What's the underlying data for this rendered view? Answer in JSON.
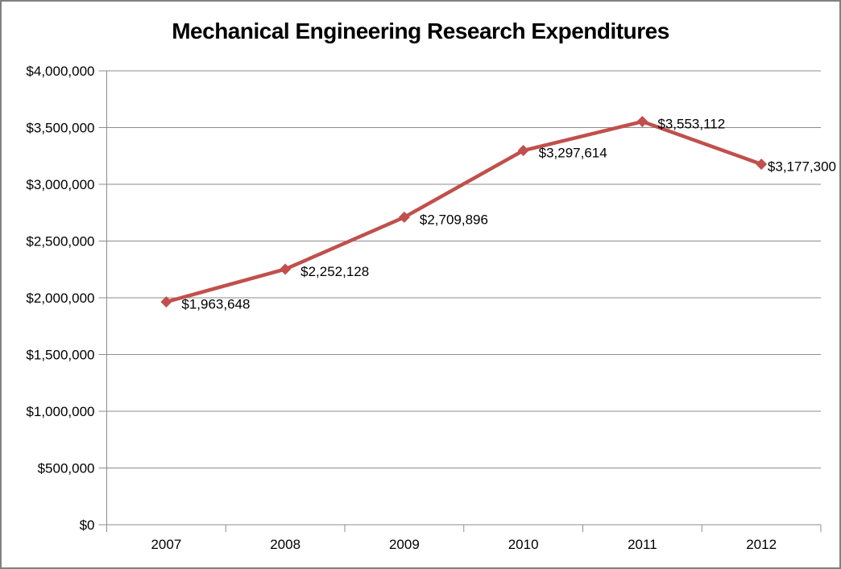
{
  "chart_data": {
    "type": "line",
    "title": "Mechanical Engineering Research Expenditures",
    "categories": [
      "2007",
      "2008",
      "2009",
      "2010",
      "2011",
      "2012"
    ],
    "series": [
      {
        "values": [
          1963648,
          2252128,
          2709896,
          3297614,
          3553112,
          3177300
        ],
        "point_labels": [
          "$1,963,648",
          "$2,252,128",
          "$2,709,896",
          "$3,297,614",
          "$3,553,112",
          "$3,177,300"
        ],
        "color": "#C0504D",
        "marker": "diamond"
      }
    ],
    "y_axis": {
      "min": 0,
      "max": 4000000,
      "step": 500000,
      "tick_labels": [
        "$0",
        "$500,000",
        "$1,000,000",
        "$1,500,000",
        "$2,000,000",
        "$2,500,000",
        "$3,000,000",
        "$3,500,000",
        "$4,000,000"
      ]
    },
    "x_axis": {
      "tick_labels": [
        "2007",
        "2008",
        "2009",
        "2010",
        "2011",
        "2012"
      ]
    },
    "grid": true,
    "legend": "none",
    "colors": {
      "series": "#C0504D",
      "grid": "#8C8C8C",
      "axis": "#8C8C8C",
      "text": "#000000",
      "frame_border": "#808080",
      "background": "#FFFFFF"
    }
  }
}
